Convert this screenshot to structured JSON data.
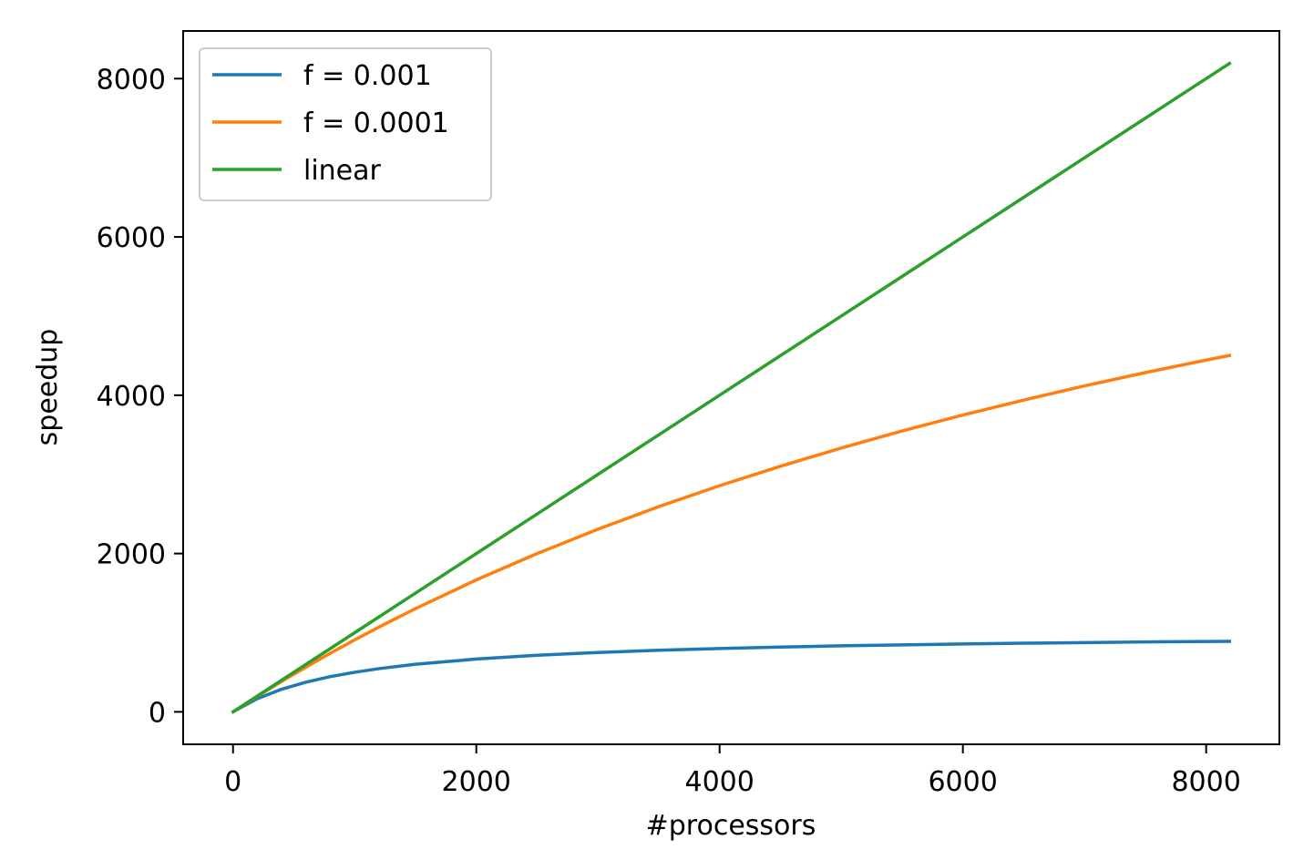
{
  "chart_data": {
    "type": "line",
    "title": "",
    "xlabel": "#processors",
    "ylabel": "speedup",
    "xlim": [
      -410,
      8602
    ],
    "ylim": [
      -410,
      8602
    ],
    "xticks": [
      0,
      2000,
      4000,
      6000,
      8000
    ],
    "yticks": [
      0,
      2000,
      4000,
      6000,
      8000
    ],
    "xtick_labels": [
      "0",
      "2000",
      "4000",
      "6000",
      "8000"
    ],
    "ytick_labels": [
      "0",
      "2000",
      "4000",
      "6000",
      "8000"
    ],
    "grid": false,
    "legend_position": "top-left",
    "x": [
      1,
      200,
      400,
      600,
      800,
      1000,
      1200,
      1500,
      2000,
      2500,
      3000,
      3500,
      4000,
      4500,
      5000,
      5500,
      6000,
      6500,
      7000,
      7500,
      8000,
      8192
    ],
    "series": [
      {
        "name": "f = 0.001",
        "color": "#1f77b4",
        "values": [
          1,
          167,
          286,
          375,
          445,
          500,
          546,
          601,
          667,
          715,
          750,
          778,
          800,
          818,
          834,
          846,
          857,
          867,
          875,
          883,
          889,
          891
        ]
      },
      {
        "name": "f = 0.0001",
        "color": "#ff7f0e",
        "values": [
          1,
          196,
          385,
          566,
          741,
          909,
          1071,
          1304,
          1667,
          2000,
          2308,
          2593,
          2857,
          3103,
          3333,
          3548,
          3750,
          3939,
          4118,
          4286,
          4444,
          4502
        ]
      },
      {
        "name": "linear",
        "color": "#2ca02c",
        "values": [
          1,
          200,
          400,
          600,
          800,
          1000,
          1200,
          1500,
          2000,
          2500,
          3000,
          3500,
          4000,
          4500,
          5000,
          5500,
          6000,
          6500,
          7000,
          7500,
          8000,
          8192
        ]
      }
    ]
  }
}
